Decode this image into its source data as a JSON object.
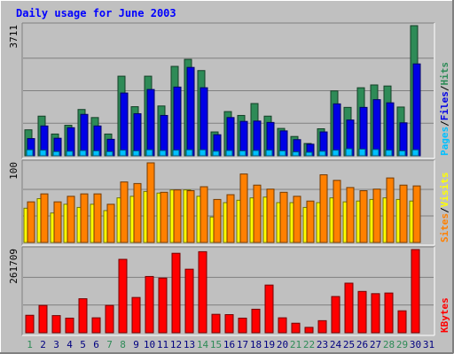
{
  "chart_data": {
    "type": "bar",
    "title": "Daily usage for June 2003",
    "days": [
      "1",
      "2",
      "3",
      "4",
      "5",
      "6",
      "7",
      "8",
      "9",
      "10",
      "11",
      "12",
      "13",
      "14",
      "15",
      "16",
      "17",
      "18",
      "19",
      "20",
      "21",
      "22",
      "23",
      "24",
      "25",
      "26",
      "27",
      "28",
      "29",
      "30",
      "31"
    ],
    "weekend_days": [
      "1",
      "7",
      "8",
      "14",
      "15",
      "21",
      "22",
      "28",
      "29"
    ],
    "panels": [
      {
        "id": "hits",
        "max_label": "3711",
        "ymax": 3711,
        "side_labels": [
          {
            "text": "Pages",
            "color": "#00c0ff"
          },
          {
            "text": "/",
            "color": "#000000"
          },
          {
            "text": "Files",
            "color": "#0000e6"
          },
          {
            "text": "/",
            "color": "#000000"
          },
          {
            "text": "Hits",
            "color": "#2e8b57"
          }
        ],
        "series": [
          {
            "name": "Hits",
            "color": "#2e8b57",
            "values": [
              740,
              1130,
              620,
              870,
              1320,
              1090,
              620,
              2270,
              1400,
              2270,
              1420,
              2550,
              2750,
              2430,
              680,
              1260,
              1150,
              1490,
              1130,
              780,
              550,
              350,
              770,
              1850,
              1380,
              1940,
              2020,
              1990,
              1390,
              3711,
              0
            ]
          },
          {
            "name": "Files",
            "color": "#0000e6",
            "values": [
              490,
              850,
              500,
              800,
              1180,
              850,
              470,
              1790,
              1200,
              1890,
              1150,
              1960,
              2520,
              1940,
              600,
              1090,
              980,
              990,
              950,
              710,
              460,
              330,
              680,
              1480,
              1020,
              1380,
              1600,
              1510,
              940,
              2620,
              0
            ]
          },
          {
            "name": "Pages",
            "color": "#00c0ff",
            "values": [
              170,
              160,
              120,
              130,
              150,
              140,
              120,
              160,
              140,
              170,
              150,
              160,
              170,
              170,
              130,
              150,
              140,
              150,
              160,
              140,
              110,
              100,
              130,
              160,
              200,
              190,
              180,
              160,
              140,
              170,
              0
            ]
          }
        ]
      },
      {
        "id": "visits",
        "max_label": "100",
        "ymax": 100,
        "side_labels": [
          {
            "text": "Sites",
            "color": "#ff8000"
          },
          {
            "text": "/",
            "color": "#000000"
          },
          {
            "text": "Visits",
            "color": "#ffff00"
          }
        ],
        "series": [
          {
            "name": "Visits",
            "color": "#ffff00",
            "values": [
              43,
              55,
              37,
              48,
              44,
              48,
              40,
              56,
              58,
              64,
              62,
              66,
              66,
              58,
              32,
              50,
              53,
              56,
              57,
              50,
              50,
              44,
              50,
              56,
              51,
              52,
              54,
              56,
              54,
              52,
              0
            ]
          },
          {
            "name": "Sites",
            "color": "#ff8000",
            "values": [
              51,
              61,
              51,
              58,
              61,
              61,
              48,
              76,
              74,
              100,
              63,
              66,
              65,
              70,
              54,
              60,
              86,
              72,
              67,
              63,
              58,
              52,
              85,
              78,
              69,
              65,
              67,
              81,
              72,
              71,
              0
            ]
          }
        ]
      },
      {
        "id": "kbytes",
        "max_label": "261709",
        "ymax": 261709,
        "side_labels": [
          {
            "text": "KBytes",
            "color": "#ff0000"
          }
        ],
        "series": [
          {
            "name": "KBytes",
            "color": "#ff0000",
            "values": [
              55000,
              86000,
              54000,
              46000,
              107000,
              47000,
              86000,
              231000,
              111000,
              177000,
              172000,
              250000,
              200000,
              255000,
              58000,
              57000,
              46000,
              74000,
              150000,
              47000,
              30000,
              17000,
              38000,
              114000,
              156000,
              130000,
              123000,
              125000,
              69000,
              261709,
              0
            ]
          }
        ]
      }
    ],
    "colors": {
      "background": "#c0c0c0",
      "plot_background": "#c0c0c0",
      "title": "#0000ff",
      "weekday_label": "#000080",
      "weekend_label": "#2e8b57",
      "grid": "#808080"
    }
  }
}
